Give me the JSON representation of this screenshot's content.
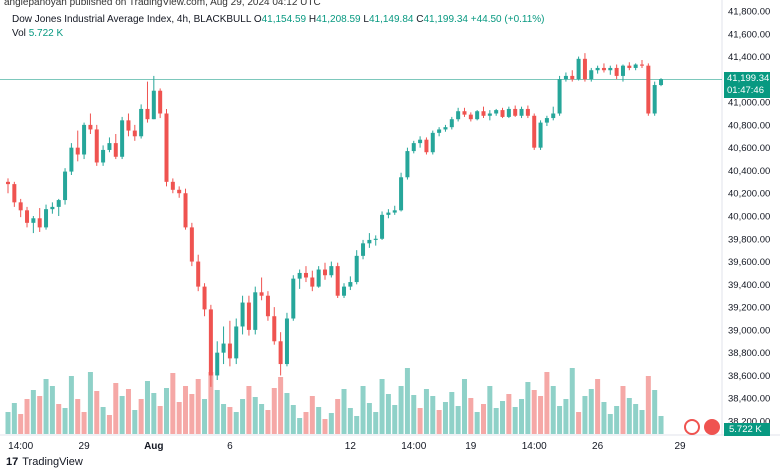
{
  "credit": "anglepanoyan published on TradingView.com, Aug 29, 2024 04:12 UTC",
  "legend": {
    "symbol": "Dow Jones Industrial Average Index, 4h, BLACKBULL",
    "o_label": "O",
    "o_value": "41,154.59",
    "h_label": "H",
    "h_value": "41,208.59",
    "l_label": "L",
    "l_value": "41,149.84",
    "c_label": "C",
    "c_value": "41,199.34",
    "change": "+44.50 (+0.11%)",
    "vol_label": "Vol",
    "vol_value": "5.722 K"
  },
  "price_tag": {
    "price": "41,199.34",
    "countdown": "01:47:46"
  },
  "volume_tag": "5.722 K",
  "brand": "TradingView",
  "colors": {
    "up": "#26a69a",
    "down": "#ef5350",
    "up_vol": "#8fd1c8",
    "down_vol": "#f5a8a6",
    "last_line": "#089981"
  },
  "chart_data": {
    "type": "candlestick",
    "title": "Dow Jones Industrial Average Index, 4h, BLACKBULL",
    "y_ticks": [
      "41,800.00",
      "41,600.00",
      "41,400.00",
      "41,200.00",
      "41,000.00",
      "40,800.00",
      "40,600.00",
      "40,400.00",
      "40,200.00",
      "40,000.00",
      "39,800.00",
      "39,600.00",
      "39,400.00",
      "39,200.00",
      "39,000.00",
      "38,800.00",
      "38,600.00",
      "38,400.00",
      "38,200.00"
    ],
    "y_tick_values": [
      41800,
      41600,
      41400,
      41200,
      41000,
      40800,
      40600,
      40400,
      40200,
      40000,
      39800,
      39600,
      39400,
      39200,
      39000,
      38800,
      38600,
      38400,
      38200
    ],
    "ylim": [
      38200,
      41800
    ],
    "x_ticks": [
      {
        "label": "14:00",
        "index": 2,
        "bold": false
      },
      {
        "label": "29",
        "index": 12,
        "bold": false
      },
      {
        "label": "Aug",
        "index": 23,
        "bold": true
      },
      {
        "label": "6",
        "index": 35,
        "bold": false
      },
      {
        "label": "12",
        "index": 54,
        "bold": false
      },
      {
        "label": "14:00",
        "index": 64,
        "bold": false
      },
      {
        "label": "19",
        "index": 73,
        "bold": false
      },
      {
        "label": "14:00",
        "index": 83,
        "bold": false
      },
      {
        "label": "26",
        "index": 93,
        "bold": false
      },
      {
        "label": "29",
        "index": 106,
        "bold": false
      }
    ],
    "last_price": 41199.34,
    "candles": [
      [
        40300,
        40330,
        40200,
        40280
      ],
      [
        40280,
        40300,
        40080,
        40120
      ],
      [
        40120,
        40150,
        39990,
        40050
      ],
      [
        40050,
        40080,
        39900,
        39940
      ],
      [
        39940,
        40000,
        39850,
        39980
      ],
      [
        39980,
        40070,
        39860,
        39900
      ],
      [
        39900,
        40100,
        39880,
        40060
      ],
      [
        40060,
        40120,
        40020,
        40080
      ],
      [
        40080,
        40150,
        40000,
        40140
      ],
      [
        40140,
        40420,
        40100,
        40390
      ],
      [
        40390,
        40640,
        40360,
        40600
      ],
      [
        40600,
        40750,
        40480,
        40540
      ],
      [
        40540,
        40820,
        40500,
        40800
      ],
      [
        40800,
        40900,
        40720,
        40760
      ],
      [
        40760,
        40800,
        40440,
        40470
      ],
      [
        40470,
        40620,
        40440,
        40580
      ],
      [
        40580,
        40690,
        40560,
        40640
      ],
      [
        40640,
        40720,
        40500,
        40520
      ],
      [
        40520,
        40870,
        40500,
        40840
      ],
      [
        40840,
        40900,
        40700,
        40750
      ],
      [
        40750,
        40800,
        40660,
        40700
      ],
      [
        40700,
        40980,
        40680,
        40940
      ],
      [
        40940,
        41180,
        40820,
        40850
      ],
      [
        40850,
        41230,
        40850,
        41100
      ],
      [
        41100,
        41120,
        40860,
        40900
      ],
      [
        40900,
        40940,
        40260,
        40300
      ],
      [
        40300,
        40330,
        40200,
        40230
      ],
      [
        40230,
        40260,
        40160,
        40200
      ],
      [
        40200,
        40240,
        39880,
        39900
      ],
      [
        39900,
        39940,
        39560,
        39600
      ],
      [
        39600,
        39660,
        39340,
        39380
      ],
      [
        39380,
        39410,
        39120,
        39180
      ],
      [
        39180,
        39220,
        38500,
        38600
      ],
      [
        38600,
        38900,
        38560,
        38800
      ],
      [
        38800,
        39030,
        38700,
        38880
      ],
      [
        38880,
        39080,
        38680,
        38750
      ],
      [
        38750,
        39100,
        38700,
        39030
      ],
      [
        39030,
        39300,
        38960,
        39240
      ],
      [
        39240,
        39300,
        38950,
        39000
      ],
      [
        39000,
        39380,
        38960,
        39330
      ],
      [
        39330,
        39460,
        39260,
        39300
      ],
      [
        39300,
        39340,
        39080,
        39120
      ],
      [
        39120,
        39200,
        38870,
        38900
      ],
      [
        38900,
        38980,
        38600,
        38700
      ],
      [
        38700,
        39150,
        38680,
        39100
      ],
      [
        39100,
        39480,
        39080,
        39450
      ],
      [
        39450,
        39530,
        39360,
        39500
      ],
      [
        39500,
        39560,
        39420,
        39460
      ],
      [
        39460,
        39520,
        39340,
        39380
      ],
      [
        39380,
        39560,
        39370,
        39530
      ],
      [
        39530,
        39590,
        39440,
        39480
      ],
      [
        39480,
        39600,
        39460,
        39560
      ],
      [
        39560,
        39590,
        39280,
        39300
      ],
      [
        39300,
        39410,
        39280,
        39380
      ],
      [
        39380,
        39470,
        39350,
        39420
      ],
      [
        39420,
        39700,
        39400,
        39650
      ],
      [
        39650,
        39790,
        39620,
        39760
      ],
      [
        39760,
        39850,
        39720,
        39790
      ],
      [
        39790,
        39830,
        39740,
        39800
      ],
      [
        39800,
        40040,
        39790,
        40010
      ],
      [
        40010,
        40060,
        39980,
        40030
      ],
      [
        40030,
        40090,
        40010,
        40050
      ],
      [
        40050,
        40380,
        40040,
        40340
      ],
      [
        40340,
        40600,
        40320,
        40570
      ],
      [
        40570,
        40660,
        40550,
        40640
      ],
      [
        40640,
        40700,
        40600,
        40670
      ],
      [
        40670,
        40690,
        40540,
        40560
      ],
      [
        40560,
        40750,
        40540,
        40730
      ],
      [
        40730,
        40780,
        40700,
        40760
      ],
      [
        40760,
        40800,
        40740,
        40780
      ],
      [
        40780,
        40870,
        40760,
        40850
      ],
      [
        40850,
        40950,
        40830,
        40920
      ],
      [
        40920,
        40950,
        40870,
        40890
      ],
      [
        40890,
        40910,
        40830,
        40850
      ],
      [
        40850,
        40930,
        40840,
        40920
      ],
      [
        40920,
        40960,
        40860,
        40880
      ],
      [
        40880,
        40930,
        40840,
        40900
      ],
      [
        40900,
        40940,
        40880,
        40930
      ],
      [
        40930,
        40950,
        40860,
        40870
      ],
      [
        40870,
        40960,
        40860,
        40940
      ],
      [
        40940,
        40970,
        40870,
        40880
      ],
      [
        40880,
        40960,
        40860,
        40940
      ],
      [
        40940,
        40970,
        40860,
        40880
      ],
      [
        40880,
        40900,
        40580,
        40600
      ],
      [
        40600,
        40840,
        40580,
        40820
      ],
      [
        40820,
        40880,
        40790,
        40860
      ],
      [
        40860,
        40960,
        40840,
        40900
      ],
      [
        40900,
        41230,
        40880,
        41200
      ],
      [
        41200,
        41260,
        41180,
        41230
      ],
      [
        41230,
        41280,
        41180,
        41200
      ],
      [
        41200,
        41400,
        41190,
        41380
      ],
      [
        41380,
        41430,
        41180,
        41200
      ],
      [
        41200,
        41300,
        41180,
        41280
      ],
      [
        41280,
        41320,
        41250,
        41300
      ],
      [
        41300,
        41340,
        41260,
        41280
      ],
      [
        41280,
        41320,
        41240,
        41300
      ],
      [
        41300,
        41330,
        41200,
        41230
      ],
      [
        41230,
        41330,
        41180,
        41320
      ],
      [
        41320,
        41350,
        41280,
        41300
      ],
      [
        41300,
        41340,
        41280,
        41330
      ],
      [
        41330,
        41370,
        41300,
        41320
      ],
      [
        41320,
        41340,
        40880,
        40900
      ],
      [
        40900,
        41180,
        40880,
        41150
      ],
      [
        41150,
        41210,
        41140,
        41200
      ]
    ],
    "volume": [
      [
        0.22,
        1
      ],
      [
        0.31,
        1
      ],
      [
        0.2,
        0
      ],
      [
        0.35,
        0
      ],
      [
        0.44,
        1
      ],
      [
        0.38,
        0
      ],
      [
        0.55,
        1
      ],
      [
        0.48,
        1
      ],
      [
        0.3,
        0
      ],
      [
        0.26,
        1
      ],
      [
        0.58,
        1
      ],
      [
        0.35,
        0
      ],
      [
        0.22,
        0
      ],
      [
        0.62,
        1
      ],
      [
        0.43,
        0
      ],
      [
        0.27,
        1
      ],
      [
        0.19,
        0
      ],
      [
        0.51,
        0
      ],
      [
        0.38,
        1
      ],
      [
        0.45,
        0
      ],
      [
        0.24,
        1
      ],
      [
        0.35,
        0
      ],
      [
        0.53,
        1
      ],
      [
        0.41,
        1
      ],
      [
        0.28,
        0
      ],
      [
        0.46,
        1
      ],
      [
        0.61,
        0
      ],
      [
        0.32,
        0
      ],
      [
        0.48,
        0
      ],
      [
        0.4,
        0
      ],
      [
        0.55,
        0
      ],
      [
        0.35,
        1
      ],
      [
        0.62,
        0
      ],
      [
        0.44,
        1
      ],
      [
        0.3,
        1
      ],
      [
        0.27,
        0
      ],
      [
        0.22,
        1
      ],
      [
        0.35,
        1
      ],
      [
        0.48,
        0
      ],
      [
        0.37,
        1
      ],
      [
        0.3,
        1
      ],
      [
        0.24,
        0
      ],
      [
        0.46,
        0
      ],
      [
        0.57,
        0
      ],
      [
        0.41,
        1
      ],
      [
        0.29,
        1
      ],
      [
        0.16,
        1
      ],
      [
        0.22,
        0
      ],
      [
        0.38,
        0
      ],
      [
        0.27,
        1
      ],
      [
        0.15,
        0
      ],
      [
        0.21,
        1
      ],
      [
        0.35,
        0
      ],
      [
        0.45,
        1
      ],
      [
        0.26,
        1
      ],
      [
        0.18,
        1
      ],
      [
        0.48,
        1
      ],
      [
        0.31,
        1
      ],
      [
        0.22,
        1
      ],
      [
        0.55,
        1
      ],
      [
        0.4,
        1
      ],
      [
        0.29,
        1
      ],
      [
        0.48,
        1
      ],
      [
        0.66,
        1
      ],
      [
        0.39,
        1
      ],
      [
        0.26,
        0
      ],
      [
        0.45,
        1
      ],
      [
        0.38,
        1
      ],
      [
        0.24,
        0
      ],
      [
        0.32,
        1
      ],
      [
        0.42,
        1
      ],
      [
        0.28,
        1
      ],
      [
        0.55,
        1
      ],
      [
        0.36,
        0
      ],
      [
        0.22,
        1
      ],
      [
        0.3,
        0
      ],
      [
        0.48,
        1
      ],
      [
        0.26,
        1
      ],
      [
        0.33,
        1
      ],
      [
        0.4,
        0
      ],
      [
        0.27,
        1
      ],
      [
        0.35,
        1
      ],
      [
        0.52,
        1
      ],
      [
        0.44,
        0
      ],
      [
        0.38,
        0
      ],
      [
        0.62,
        0
      ],
      [
        0.48,
        1
      ],
      [
        0.28,
        1
      ],
      [
        0.35,
        1
      ],
      [
        0.66,
        1
      ],
      [
        0.22,
        0
      ],
      [
        0.38,
        1
      ],
      [
        0.45,
        1
      ],
      [
        0.55,
        0
      ],
      [
        0.32,
        1
      ],
      [
        0.2,
        1
      ],
      [
        0.28,
        1
      ],
      [
        0.48,
        0
      ],
      [
        0.36,
        1
      ],
      [
        0.3,
        1
      ],
      [
        0.24,
        1
      ],
      [
        0.58,
        0
      ],
      [
        0.44,
        1
      ],
      [
        0.18,
        1
      ]
    ]
  }
}
